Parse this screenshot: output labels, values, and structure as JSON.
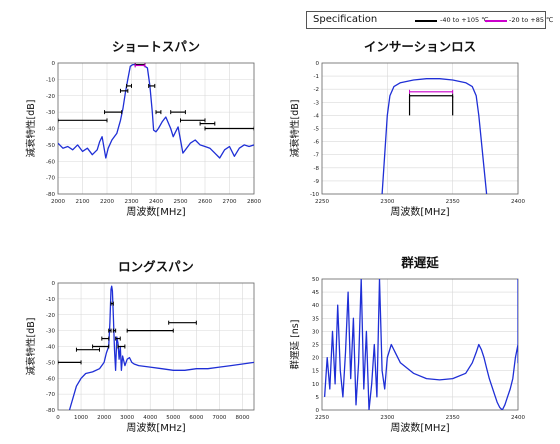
{
  "legend": {
    "title": "Specification",
    "items": [
      {
        "label": "-40 to +105 ℃",
        "color": "#000000"
      },
      {
        "label": "-20 to +85 ℃",
        "color": "#cc00cc"
      }
    ]
  },
  "colors": {
    "trace": "#1f2fd6",
    "spec_black": "#000000",
    "spec_magenta": "#cc00cc",
    "grid": "#d9d9d9"
  },
  "chart_data": [
    {
      "type": "line",
      "title": "ショートスパン",
      "xlabel": "周波数[MHz]",
      "ylabel": "減衰特性[dB]",
      "xlim": [
        2000,
        2800
      ],
      "ylim": [
        -80,
        0
      ],
      "xticks": [
        2000,
        2100,
        2200,
        2300,
        2400,
        2500,
        2600,
        2700,
        2800
      ],
      "yticks": [
        0,
        -10,
        -20,
        -30,
        -40,
        -50,
        -60,
        -70,
        -80
      ],
      "grid": true,
      "series": [
        {
          "x": [
            2000,
            2020,
            2040,
            2060,
            2080,
            2100,
            2120,
            2140,
            2160,
            2170,
            2180,
            2195,
            2205,
            2220,
            2240,
            2255,
            2265,
            2275,
            2285,
            2295,
            2305,
            2315,
            2330,
            2350,
            2365,
            2375,
            2385,
            2390,
            2400,
            2410,
            2425,
            2440,
            2460,
            2470,
            2480,
            2490,
            2500,
            2510,
            2520,
            2540,
            2560,
            2580,
            2600,
            2620,
            2640,
            2660,
            2680,
            2700,
            2720,
            2740,
            2760,
            2780,
            2800
          ],
          "y": [
            -49,
            -52,
            -51,
            -53,
            -50,
            -54,
            -52,
            -56,
            -53,
            -48,
            -45,
            -58,
            -52,
            -47,
            -43,
            -35,
            -28,
            -18,
            -10,
            -2,
            -1,
            -1,
            -1,
            -1.5,
            -3,
            -14,
            -30,
            -41,
            -42,
            -40,
            -36,
            -33,
            -40,
            -45,
            -42,
            -39,
            -47,
            -55,
            -53,
            -49,
            -47,
            -50,
            -51,
            -52,
            -55,
            -58,
            -53,
            -51,
            -57,
            -52,
            -50,
            -51,
            -50
          ]
        }
      ],
      "spec_lines": [
        {
          "x": [
            2000,
            2200
          ],
          "y": -35,
          "color": "black"
        },
        {
          "x": [
            2190,
            2260
          ],
          "y": -30,
          "color": "black"
        },
        {
          "x": [
            2255,
            2285
          ],
          "y": -17,
          "color": "black"
        },
        {
          "x": [
            2280,
            2300
          ],
          "y": -14,
          "color": "black"
        },
        {
          "x": [
            2315,
            2355
          ],
          "y": -1,
          "color": "black"
        },
        {
          "x": [
            2315,
            2355
          ],
          "y": -1.5,
          "color": "magenta"
        },
        {
          "x": [
            2370,
            2395
          ],
          "y": -14,
          "color": "black"
        },
        {
          "x": [
            2400,
            2420
          ],
          "y": -30,
          "color": "black"
        },
        {
          "x": [
            2460,
            2520
          ],
          "y": -30,
          "color": "black"
        },
        {
          "x": [
            2500,
            2600
          ],
          "y": -35,
          "color": "black"
        },
        {
          "x": [
            2580,
            2640
          ],
          "y": -37,
          "color": "black"
        },
        {
          "x": [
            2600,
            2800
          ],
          "y": -40,
          "color": "black"
        }
      ]
    },
    {
      "type": "line",
      "title": "インサーションロス",
      "xlabel": "周波数[MHz]",
      "ylabel": "減衰特性[dB]",
      "xlim": [
        2250,
        2400
      ],
      "ylim": [
        -10,
        0
      ],
      "xticks": [
        2250,
        2300,
        2350,
        2400
      ],
      "yticks": [
        0,
        -1,
        -2,
        -3,
        -4,
        -5,
        -6,
        -7,
        -8,
        -9,
        -10
      ],
      "grid": true,
      "series": [
        {
          "x": [
            2296,
            2298,
            2300,
            2302,
            2305,
            2310,
            2320,
            2330,
            2340,
            2350,
            2360,
            2365,
            2368,
            2370,
            2372,
            2374,
            2376
          ],
          "y": [
            -10,
            -7,
            -4,
            -2.5,
            -1.8,
            -1.5,
            -1.3,
            -1.2,
            -1.2,
            -1.3,
            -1.5,
            -1.8,
            -2.5,
            -4,
            -6,
            -8,
            -10
          ]
        }
      ],
      "spec_lines": [
        {
          "x": [
            2317,
            2350
          ],
          "y": -2.2,
          "color": "magenta"
        },
        {
          "x": [
            2317,
            2350
          ],
          "y": -2.5,
          "color": "black"
        },
        {
          "x": [
            2317,
            2317
          ],
          "y": [
            -2.5,
            -4
          ],
          "color": "black"
        },
        {
          "x": [
            2350,
            2350
          ],
          "y": [
            -2.5,
            -4
          ],
          "color": "black"
        }
      ]
    },
    {
      "type": "line",
      "title": "ロングスパン",
      "xlabel": "周波数[MHz]",
      "ylabel": "減衰特性[dB]",
      "xlim": [
        0,
        8500
      ],
      "ylim": [
        -80,
        0
      ],
      "xticks": [
        0,
        1000,
        2000,
        3000,
        4000,
        5000,
        6000,
        7000,
        8000
      ],
      "yticks": [
        0,
        -10,
        -20,
        -30,
        -40,
        -50,
        -60,
        -70,
        -80
      ],
      "grid": true,
      "series": [
        {
          "x": [
            500,
            800,
            1000,
            1200,
            1500,
            1800,
            2000,
            2100,
            2200,
            2250,
            2300,
            2330,
            2360,
            2400,
            2450,
            2500,
            2550,
            2600,
            2650,
            2700,
            2750,
            2800,
            2900,
            3000,
            3100,
            3200,
            3300,
            3500,
            4000,
            4500,
            5000,
            5500,
            6000,
            6500,
            7000,
            7500,
            8000,
            8500
          ],
          "y": [
            -80,
            -65,
            -60,
            -57,
            -56,
            -54,
            -50,
            -44,
            -40,
            -25,
            -4,
            -2,
            -5,
            -20,
            -42,
            -55,
            -34,
            -38,
            -48,
            -40,
            -55,
            -46,
            -52,
            -48,
            -47,
            -50,
            -51,
            -52,
            -53,
            -54,
            -55,
            -55,
            -54,
            -54,
            -53,
            -52,
            -51,
            -50
          ]
        }
      ],
      "spec_lines": [
        {
          "x": [
            0,
            1000
          ],
          "y": -50,
          "color": "black"
        },
        {
          "x": [
            800,
            1800
          ],
          "y": -42,
          "color": "black"
        },
        {
          "x": [
            1500,
            2200
          ],
          "y": -40,
          "color": "black"
        },
        {
          "x": [
            1900,
            2200
          ],
          "y": -35,
          "color": "black"
        },
        {
          "x": [
            2200,
            2300
          ],
          "y": -30,
          "color": "black"
        },
        {
          "x": [
            2300,
            2400
          ],
          "y": -13,
          "color": "black"
        },
        {
          "x": [
            2400,
            2500
          ],
          "y": -30,
          "color": "black"
        },
        {
          "x": [
            2500,
            2700
          ],
          "y": -35,
          "color": "black"
        },
        {
          "x": [
            2600,
            2900
          ],
          "y": -40,
          "color": "black"
        },
        {
          "x": [
            3000,
            5000
          ],
          "y": -30,
          "color": "black"
        },
        {
          "x": [
            4800,
            6000
          ],
          "y": -25,
          "color": "black"
        }
      ]
    },
    {
      "type": "line",
      "title": "群遅延",
      "xlabel": "周波数[MHz]",
      "ylabel": "群遅延 [ns]",
      "xlim": [
        2250,
        2400
      ],
      "ylim": [
        0,
        50
      ],
      "xticks": [
        2250,
        2300,
        2350,
        2400
      ],
      "yticks": [
        0,
        5,
        10,
        15,
        20,
        25,
        30,
        35,
        40,
        45,
        50
      ],
      "grid": true,
      "series": [
        {
          "x": [
            2252,
            2254,
            2256,
            2258,
            2260,
            2262,
            2264,
            2266,
            2268,
            2270,
            2272,
            2274,
            2276,
            2278,
            2280,
            2282,
            2284,
            2286,
            2288,
            2290,
            2292,
            2294,
            2296,
            2298,
            2300,
            2303,
            2306,
            2310,
            2320,
            2330,
            2340,
            2350,
            2360,
            2365,
            2368,
            2370,
            2372,
            2374,
            2376,
            2378,
            2380,
            2382,
            2384,
            2386,
            2388,
            2390,
            2392,
            2394,
            2396,
            2398,
            2400,
            2402,
            2404,
            2406,
            2408,
            2410
          ],
          "y": [
            5,
            20,
            8,
            30,
            10,
            40,
            15,
            5,
            22,
            45,
            12,
            35,
            2,
            18,
            50,
            8,
            30,
            0,
            10,
            25,
            5,
            50,
            15,
            8,
            20,
            25,
            22,
            18,
            14,
            12,
            11.5,
            12,
            14,
            18,
            22,
            25,
            23,
            20,
            16,
            12,
            9,
            6,
            3,
            1,
            0,
            2,
            5,
            8,
            12,
            20,
            25,
            18,
            30,
            45,
            50,
            40
          ]
        }
      ]
    }
  ]
}
